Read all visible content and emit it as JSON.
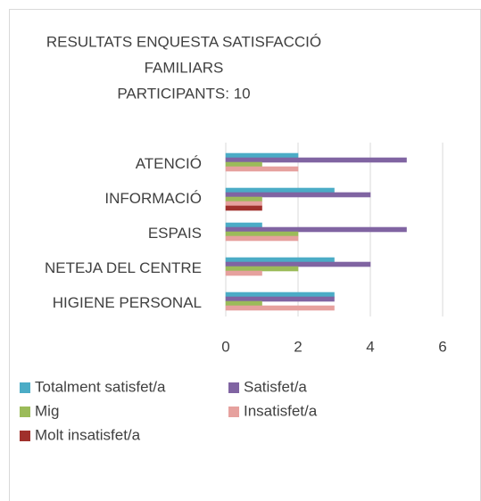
{
  "chart_data": {
    "type": "barh",
    "title": [
      "RESULTATS ENQUESTA SATISFACCIÓ",
      "FAMILIARS",
      "PARTICIPANTS: 10"
    ],
    "categories": [
      "ATENCIÓ",
      "INFORMACIÓ",
      "ESPAIS",
      "NETEJA DEL CENTRE",
      "HIGIENE PERSONAL"
    ],
    "series": [
      {
        "name": "Totalment satisfet/a",
        "color": "#4bacc6",
        "values": [
          2,
          3,
          1,
          3,
          3
        ]
      },
      {
        "name": "Satisfet/a",
        "color": "#8064a2",
        "values": [
          5,
          4,
          5,
          4,
          3
        ]
      },
      {
        "name": "Mig",
        "color": "#9bbb59",
        "values": [
          1,
          1,
          2,
          2,
          1
        ]
      },
      {
        "name": "Insatisfet/a",
        "color": "#e6a19e",
        "values": [
          2,
          1,
          2,
          1,
          3
        ]
      },
      {
        "name": "Molt insatisfet/a",
        "color": "#a0302c",
        "values": [
          0,
          1,
          0,
          0,
          0
        ]
      }
    ],
    "xlim": [
      0,
      6
    ],
    "xticks": [
      0,
      2,
      4,
      6
    ],
    "grid": true,
    "legend": "bottom"
  }
}
